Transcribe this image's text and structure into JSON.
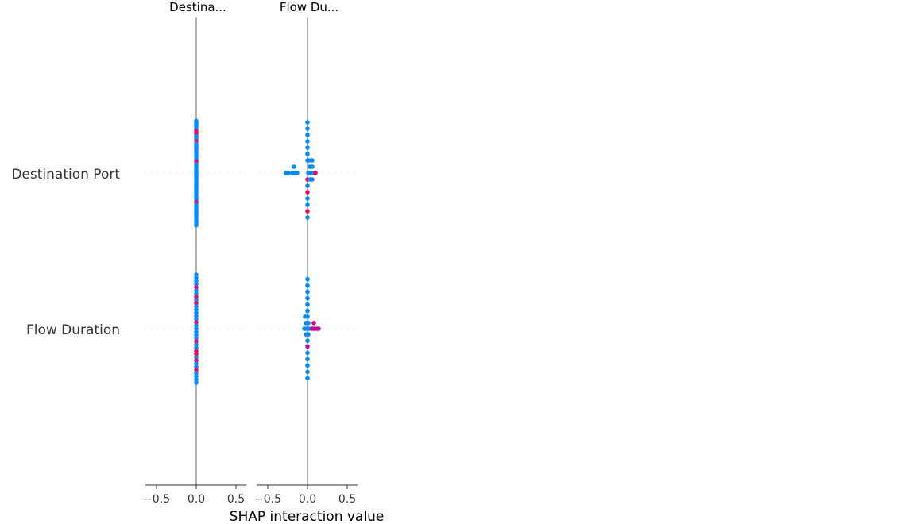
{
  "chart_data": {
    "type": "scatter",
    "subtype": "shap-interaction-summary",
    "title": "",
    "xlabel": "SHAP interaction value",
    "column_titles": [
      "Destina...",
      "Flow Du..."
    ],
    "row_labels": [
      "Destination Port",
      "Flow Duration"
    ],
    "xlim": [
      -0.65,
      0.65
    ],
    "xticks": [
      -0.5,
      0.0,
      0.5
    ],
    "xtick_labels": [
      "−0.5",
      "0.0",
      "0.5"
    ],
    "colors": {
      "low": "#008bfb",
      "high": "#ff0052",
      "mid": "#c5059a",
      "zero_line": "#999999",
      "row_guide": "#dddddd",
      "axis": "#333333"
    },
    "panels": [
      {
        "column": "Destina...",
        "rows": [
          {
            "feature": "Destination Port",
            "points": [
              {
                "x": 0.0,
                "y": 0.82,
                "c": "low"
              },
              {
                "x": 0.0,
                "y": 0.78,
                "c": "low"
              },
              {
                "x": 0.0,
                "y": 0.74,
                "c": "low"
              },
              {
                "x": 0.0,
                "y": 0.7,
                "c": "low"
              },
              {
                "x": 0.0,
                "y": 0.66,
                "c": "high"
              },
              {
                "x": 0.0,
                "y": 0.62,
                "c": "high"
              },
              {
                "x": 0.0,
                "y": 0.58,
                "c": "low"
              },
              {
                "x": 0.0,
                "y": 0.54,
                "c": "low"
              },
              {
                "x": 0.0,
                "y": 0.5,
                "c": "high"
              },
              {
                "x": 0.0,
                "y": 0.46,
                "c": "low"
              },
              {
                "x": 0.0,
                "y": 0.42,
                "c": "low"
              },
              {
                "x": 0.0,
                "y": 0.38,
                "c": "low"
              },
              {
                "x": 0.0,
                "y": 0.34,
                "c": "low"
              },
              {
                "x": 0.0,
                "y": 0.3,
                "c": "low"
              },
              {
                "x": 0.0,
                "y": 0.26,
                "c": "low"
              },
              {
                "x": 0.0,
                "y": 0.22,
                "c": "low"
              },
              {
                "x": 0.0,
                "y": 0.18,
                "c": "high"
              },
              {
                "x": 0.0,
                "y": 0.14,
                "c": "low"
              },
              {
                "x": 0.0,
                "y": 0.1,
                "c": "low"
              },
              {
                "x": 0.0,
                "y": 0.06,
                "c": "low"
              },
              {
                "x": 0.0,
                "y": 0.02,
                "c": "low"
              },
              {
                "x": 0.0,
                "y": -0.02,
                "c": "low"
              },
              {
                "x": 0.0,
                "y": -0.06,
                "c": "low"
              },
              {
                "x": 0.0,
                "y": -0.1,
                "c": "low"
              },
              {
                "x": 0.0,
                "y": -0.14,
                "c": "low"
              },
              {
                "x": 0.0,
                "y": -0.18,
                "c": "low"
              },
              {
                "x": 0.0,
                "y": -0.22,
                "c": "low"
              },
              {
                "x": 0.0,
                "y": -0.26,
                "c": "low"
              },
              {
                "x": 0.0,
                "y": -0.3,
                "c": "low"
              },
              {
                "x": 0.0,
                "y": -0.34,
                "c": "low"
              },
              {
                "x": 0.0,
                "y": -0.38,
                "c": "low"
              },
              {
                "x": 0.0,
                "y": -0.42,
                "c": "low"
              },
              {
                "x": 0.0,
                "y": -0.46,
                "c": "high"
              },
              {
                "x": 0.0,
                "y": -0.5,
                "c": "low"
              },
              {
                "x": 0.0,
                "y": -0.54,
                "c": "low"
              },
              {
                "x": 0.0,
                "y": -0.58,
                "c": "low"
              },
              {
                "x": 0.0,
                "y": -0.62,
                "c": "low"
              },
              {
                "x": 0.0,
                "y": -0.66,
                "c": "low"
              },
              {
                "x": 0.0,
                "y": -0.7,
                "c": "low"
              },
              {
                "x": 0.0,
                "y": -0.74,
                "c": "low"
              },
              {
                "x": 0.0,
                "y": -0.78,
                "c": "low"
              },
              {
                "x": 0.0,
                "y": -0.82,
                "c": "low"
              }
            ]
          },
          {
            "feature": "Flow Duration",
            "points": [
              {
                "x": 0.0,
                "y": 0.85,
                "c": "low"
              },
              {
                "x": 0.0,
                "y": 0.8,
                "c": "low"
              },
              {
                "x": 0.0,
                "y": 0.75,
                "c": "low"
              },
              {
                "x": 0.0,
                "y": 0.7,
                "c": "low"
              },
              {
                "x": 0.0,
                "y": 0.65,
                "c": "high"
              },
              {
                "x": 0.0,
                "y": 0.6,
                "c": "low"
              },
              {
                "x": 0.0,
                "y": 0.55,
                "c": "low"
              },
              {
                "x": 0.0,
                "y": 0.5,
                "c": "high"
              },
              {
                "x": 0.0,
                "y": 0.45,
                "c": "low"
              },
              {
                "x": 0.0,
                "y": 0.4,
                "c": "high"
              },
              {
                "x": 0.0,
                "y": 0.35,
                "c": "low"
              },
              {
                "x": 0.0,
                "y": 0.3,
                "c": "low"
              },
              {
                "x": 0.0,
                "y": 0.25,
                "c": "low"
              },
              {
                "x": 0.0,
                "y": 0.2,
                "c": "low"
              },
              {
                "x": 0.0,
                "y": 0.15,
                "c": "low"
              },
              {
                "x": 0.0,
                "y": 0.1,
                "c": "high"
              },
              {
                "x": 0.0,
                "y": 0.05,
                "c": "low"
              },
              {
                "x": 0.0,
                "y": 0.0,
                "c": "low"
              },
              {
                "x": 0.0,
                "y": -0.05,
                "c": "low"
              },
              {
                "x": 0.0,
                "y": -0.1,
                "c": "low"
              },
              {
                "x": 0.0,
                "y": -0.15,
                "c": "low"
              },
              {
                "x": 0.0,
                "y": -0.2,
                "c": "high"
              },
              {
                "x": 0.0,
                "y": -0.25,
                "c": "low"
              },
              {
                "x": 0.0,
                "y": -0.3,
                "c": "low"
              },
              {
                "x": 0.0,
                "y": -0.35,
                "c": "high"
              },
              {
                "x": 0.0,
                "y": -0.4,
                "c": "high"
              },
              {
                "x": 0.0,
                "y": -0.45,
                "c": "low"
              },
              {
                "x": 0.0,
                "y": -0.5,
                "c": "high"
              },
              {
                "x": 0.0,
                "y": -0.55,
                "c": "low"
              },
              {
                "x": 0.0,
                "y": -0.6,
                "c": "low"
              },
              {
                "x": 0.0,
                "y": -0.65,
                "c": "high"
              },
              {
                "x": 0.0,
                "y": -0.7,
                "c": "low"
              },
              {
                "x": 0.0,
                "y": -0.75,
                "c": "low"
              },
              {
                "x": 0.0,
                "y": -0.8,
                "c": "low"
              },
              {
                "x": 0.0,
                "y": -0.85,
                "c": "low"
              }
            ]
          }
        ]
      },
      {
        "column": "Flow Du...",
        "rows": [
          {
            "feature": "Destination Port",
            "points": [
              {
                "x": 0.0,
                "y": 0.8,
                "c": "low"
              },
              {
                "x": 0.0,
                "y": 0.7,
                "c": "low"
              },
              {
                "x": 0.0,
                "y": 0.6,
                "c": "low"
              },
              {
                "x": 0.0,
                "y": 0.5,
                "c": "low"
              },
              {
                "x": 0.0,
                "y": 0.4,
                "c": "low"
              },
              {
                "x": 0.0,
                "y": 0.3,
                "c": "low"
              },
              {
                "x": 0.0,
                "y": 0.2,
                "c": "low"
              },
              {
                "x": 0.02,
                "y": 0.2,
                "c": "low"
              },
              {
                "x": 0.06,
                "y": 0.2,
                "c": "low"
              },
              {
                "x": -0.17,
                "y": 0.1,
                "c": "low"
              },
              {
                "x": 0.03,
                "y": 0.1,
                "c": "low"
              },
              {
                "x": 0.06,
                "y": 0.1,
                "c": "low"
              },
              {
                "x": -0.27,
                "y": 0.0,
                "c": "low"
              },
              {
                "x": -0.24,
                "y": 0.0,
                "c": "low"
              },
              {
                "x": -0.19,
                "y": 0.0,
                "c": "low"
              },
              {
                "x": -0.16,
                "y": 0.0,
                "c": "low"
              },
              {
                "x": -0.13,
                "y": 0.0,
                "c": "low"
              },
              {
                "x": 0.01,
                "y": 0.0,
                "c": "low"
              },
              {
                "x": 0.04,
                "y": 0.0,
                "c": "low"
              },
              {
                "x": 0.07,
                "y": 0.0,
                "c": "low"
              },
              {
                "x": 0.1,
                "y": 0.0,
                "c": "high"
              },
              {
                "x": 0.0,
                "y": -0.1,
                "c": "high"
              },
              {
                "x": 0.03,
                "y": -0.1,
                "c": "low"
              },
              {
                "x": 0.06,
                "y": -0.1,
                "c": "low"
              },
              {
                "x": 0.0,
                "y": -0.2,
                "c": "low"
              },
              {
                "x": 0.0,
                "y": -0.3,
                "c": "high"
              },
              {
                "x": 0.0,
                "y": -0.4,
                "c": "low"
              },
              {
                "x": 0.0,
                "y": -0.5,
                "c": "low"
              },
              {
                "x": 0.0,
                "y": -0.6,
                "c": "high"
              },
              {
                "x": 0.0,
                "y": -0.7,
                "c": "low"
              }
            ]
          },
          {
            "feature": "Flow Duration",
            "points": [
              {
                "x": 0.0,
                "y": 0.78,
                "c": "low"
              },
              {
                "x": 0.0,
                "y": 0.68,
                "c": "low"
              },
              {
                "x": 0.0,
                "y": 0.58,
                "c": "low"
              },
              {
                "x": 0.0,
                "y": 0.48,
                "c": "low"
              },
              {
                "x": 0.0,
                "y": 0.38,
                "c": "low"
              },
              {
                "x": 0.0,
                "y": 0.28,
                "c": "low"
              },
              {
                "x": -0.03,
                "y": 0.19,
                "c": "low"
              },
              {
                "x": 0.0,
                "y": 0.19,
                "c": "low"
              },
              {
                "x": -0.02,
                "y": 0.09,
                "c": "low"
              },
              {
                "x": 0.01,
                "y": 0.09,
                "c": "low"
              },
              {
                "x": 0.08,
                "y": 0.09,
                "c": "mid"
              },
              {
                "x": -0.04,
                "y": 0.0,
                "c": "low"
              },
              {
                "x": -0.01,
                "y": 0.0,
                "c": "low"
              },
              {
                "x": 0.02,
                "y": 0.0,
                "c": "low"
              },
              {
                "x": 0.06,
                "y": 0.0,
                "c": "mid"
              },
              {
                "x": 0.09,
                "y": 0.0,
                "c": "mid"
              },
              {
                "x": 0.12,
                "y": 0.0,
                "c": "mid"
              },
              {
                "x": 0.14,
                "y": 0.0,
                "c": "mid"
              },
              {
                "x": -0.02,
                "y": -0.09,
                "c": "low"
              },
              {
                "x": 0.01,
                "y": -0.09,
                "c": "low"
              },
              {
                "x": 0.0,
                "y": -0.19,
                "c": "low"
              },
              {
                "x": 0.0,
                "y": -0.28,
                "c": "mid"
              },
              {
                "x": 0.0,
                "y": -0.38,
                "c": "low"
              },
              {
                "x": 0.0,
                "y": -0.48,
                "c": "low"
              },
              {
                "x": 0.0,
                "y": -0.58,
                "c": "low"
              },
              {
                "x": 0.0,
                "y": -0.68,
                "c": "low"
              },
              {
                "x": 0.0,
                "y": -0.78,
                "c": "low"
              }
            ]
          }
        ]
      }
    ]
  }
}
